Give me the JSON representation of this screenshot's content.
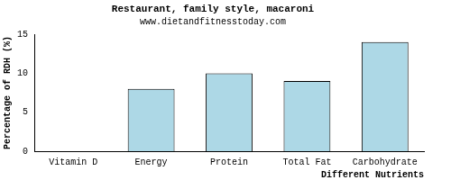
{
  "chart_data": {
    "type": "bar",
    "title": "Restaurant, family style, macaroni",
    "subtitle": "www.dietandfitnesstoday.com",
    "x_label": "Different Nutrients",
    "y_label": "Percentage of RDH (%)",
    "categories": [
      "Vitamin D",
      "Energy",
      "Protein",
      "Total Fat",
      "Carbohydrate"
    ],
    "values": [
      0,
      8,
      10,
      9,
      14
    ],
    "color": "#add8e6",
    "ylim": [
      0,
      15
    ],
    "yticks": [
      0,
      5,
      10,
      15
    ],
    "grid": false
  }
}
